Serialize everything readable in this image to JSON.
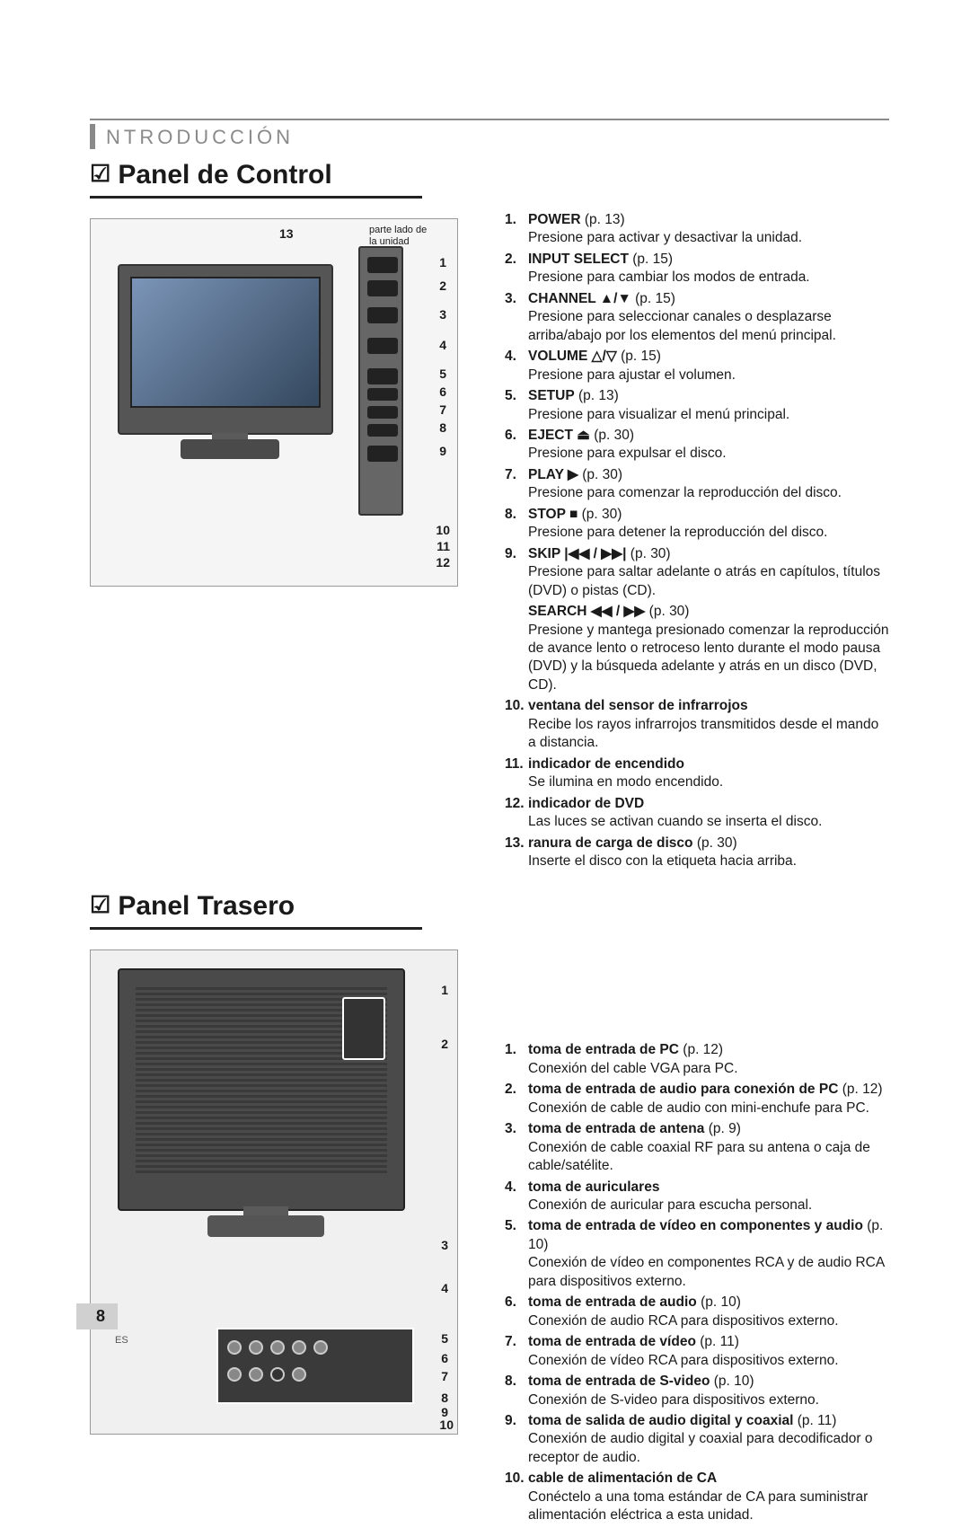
{
  "section_header": "NTRODUCCIÓN",
  "page_number": "8",
  "page_lang": "ES",
  "panel1": {
    "title": "Panel de Control",
    "check": "☑",
    "top_callout": "13",
    "side_note_l1": "parte lado de",
    "side_note_l2": "la unidad",
    "callouts": [
      "1",
      "2",
      "3",
      "4",
      "5",
      "6",
      "7",
      "8",
      "9",
      "10",
      "11",
      "12"
    ],
    "items": [
      {
        "num": "1.",
        "label": "POWER",
        "page": "(p. 13)",
        "desc": "Presione para activar y desactivar la unidad."
      },
      {
        "num": "2.",
        "label": "INPUT SELECT",
        "page": "(p. 15)",
        "desc": "Presione para cambiar los modos de entrada."
      },
      {
        "num": "3.",
        "label": "CHANNEL ▲/▼",
        "page": "(p. 15)",
        "desc": "Presione para seleccionar canales o desplazarse arriba/abajo por los elementos del menú principal."
      },
      {
        "num": "4.",
        "label": "VOLUME △/▽",
        "page": "(p. 15)",
        "desc": "Presione para ajustar el volumen."
      },
      {
        "num": "5.",
        "label": "SETUP",
        "page": "(p. 13)",
        "desc": "Presione para visualizar el menú principal."
      },
      {
        "num": "6.",
        "label": "EJECT ⏏",
        "page": "(p. 30)",
        "desc": "Presione para expulsar el disco."
      },
      {
        "num": "7.",
        "label": "PLAY ▶",
        "page": "(p. 30)",
        "desc": "Presione para comenzar la reproducción del disco."
      },
      {
        "num": "8.",
        "label": "STOP ■",
        "page": "(p. 30)",
        "desc": "Presione para detener la reproducción del disco."
      },
      {
        "num": "9.",
        "label": "SKIP |◀◀ / ▶▶|",
        "page": "(p. 30)",
        "desc": "Presione para saltar adelante o atrás en capítulos, títulos (DVD) o pistas (CD)."
      },
      {
        "num": "10.",
        "label": "ventana del sensor de infrarrojos",
        "page": "",
        "desc": "Recibe los rayos infrarrojos transmitidos desde el mando a distancia."
      },
      {
        "num": "11.",
        "label": "indicador de encendido",
        "page": "",
        "desc": "Se ilumina en modo encendido."
      },
      {
        "num": "12.",
        "label": "indicador de DVD",
        "page": "",
        "desc": "Las luces se activan cuando se inserta el disco."
      },
      {
        "num": "13.",
        "label": "ranura de carga de disco",
        "page": "(p. 30)",
        "desc": "Inserte el disco con la etiqueta hacia arriba."
      }
    ],
    "sub9": {
      "label": "SEARCH ◀◀ / ▶▶",
      "page": "(p. 30)",
      "desc": "Presione y mantega presionado comenzar la reproducción de avance lento o retroceso lento durante el modo pausa (DVD) y la búsqueda adelante y atrás en un disco (DVD, CD)."
    }
  },
  "panel2": {
    "title": "Panel Trasero",
    "callouts": [
      "1",
      "2",
      "3",
      "4",
      "5",
      "6",
      "7",
      "8",
      "9",
      "10"
    ],
    "items": [
      {
        "num": "1.",
        "label": "toma de entrada de PC",
        "page": "(p. 12)",
        "desc": "Conexión del cable VGA para PC."
      },
      {
        "num": "2.",
        "label": "toma de entrada de audio para conexión de PC",
        "page": "(p. 12)",
        "desc": "Conexión de cable de audio con mini-enchufe para PC."
      },
      {
        "num": "3.",
        "label": "toma de entrada de antena",
        "page": "(p. 9)",
        "desc": "Conexión de cable coaxial RF para su antena o caja de cable/satélite."
      },
      {
        "num": "4.",
        "label": "toma de auriculares",
        "page": "",
        "desc": "Conexión de auricular para escucha personal."
      },
      {
        "num": "5.",
        "label": "toma de entrada de vídeo en componentes y audio",
        "page": "(p. 10)",
        "desc": "Conexión de vídeo en componentes RCA y de audio RCA para dispositivos externo."
      },
      {
        "num": "6.",
        "label": "toma de entrada de audio",
        "page": "(p. 10)",
        "desc": "Conexión de audio RCA para dispositivos externo."
      },
      {
        "num": "7.",
        "label": "toma de entrada de vídeo",
        "page": "(p. 11)",
        "desc": "Conexión de vídeo RCA para dispositivos externo."
      },
      {
        "num": "8.",
        "label": "toma de entrada de S-video",
        "page": "(p. 10)",
        "desc": "Conexión de S-video para dispositivos externo."
      },
      {
        "num": "9.",
        "label": "toma de salida de audio digital y coaxial",
        "page": "(p. 11)",
        "desc": "Conexión de audio digital y coaxial para decodificador o receptor de audio."
      },
      {
        "num": "10.",
        "label": "cable de alimentación de CA",
        "page": "",
        "desc": "Conéctelo a una toma estándar de CA para suministrar alimentación eléctrica a esta unidad."
      }
    ]
  }
}
